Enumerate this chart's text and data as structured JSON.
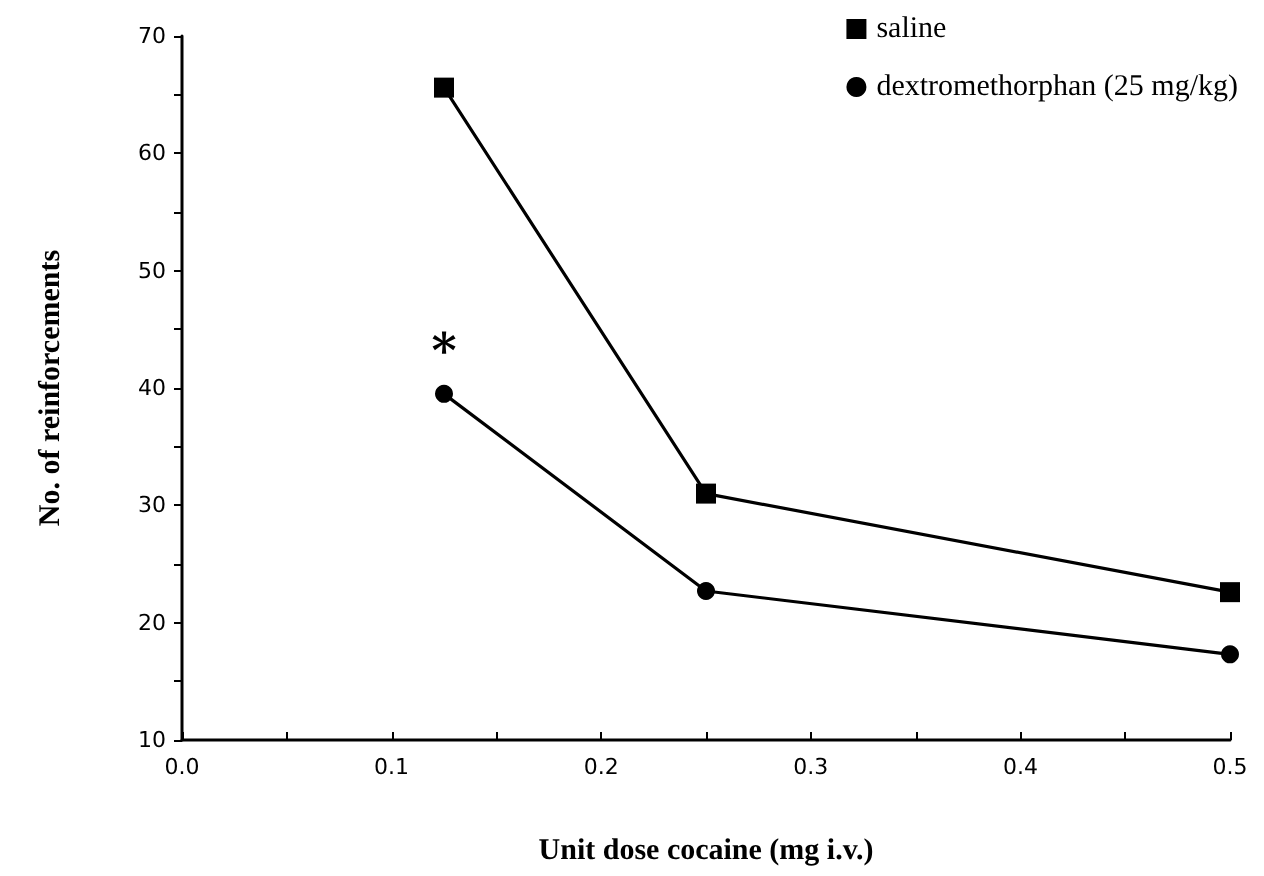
{
  "chart_data": {
    "type": "line",
    "xlabel": "Unit dose cocaine (mg i.v.)",
    "ylabel": "No. of reinforcements",
    "x": [
      0.125,
      0.25,
      0.5
    ],
    "series": [
      {
        "name": "saline",
        "color": "#000000",
        "marker": "square",
        "values": [
          65.6,
          31.0,
          22.6
        ]
      },
      {
        "name": "dextromethorphan (25 mg/kg)",
        "color": "#000000",
        "marker": "circle",
        "values": [
          39.5,
          22.7,
          17.3
        ]
      }
    ],
    "xlim": [
      0,
      0.5
    ],
    "xticks": [
      {
        "value": 0,
        "label": "0.0"
      },
      {
        "value": 0.05,
        "label": null
      },
      {
        "value": 0.1,
        "label": "0.1"
      },
      {
        "value": 0.15,
        "label": null
      },
      {
        "value": 0.2,
        "label": "0.2"
      },
      {
        "value": 0.25,
        "label": null
      },
      {
        "value": 0.3,
        "label": "0.3"
      },
      {
        "value": 0.35,
        "label": null
      },
      {
        "value": 0.4,
        "label": "0.4"
      },
      {
        "value": 0.45,
        "label": null
      },
      {
        "value": 0.5,
        "label": "0.5"
      }
    ],
    "ylim": [
      10,
      70
    ],
    "yticks": [
      10,
      {
        "value": 15,
        "label": null
      },
      20,
      {
        "value": 25,
        "label": null
      },
      30,
      {
        "value": 35,
        "label": null
      },
      40,
      {
        "value": 45,
        "label": null
      },
      50,
      {
        "value": 55,
        "label": null
      },
      60,
      {
        "value": 65,
        "label": null
      },
      70
    ],
    "annotations": [
      "*"
    ],
    "grid": false,
    "legend": "top right",
    "line_style": "solid"
  }
}
